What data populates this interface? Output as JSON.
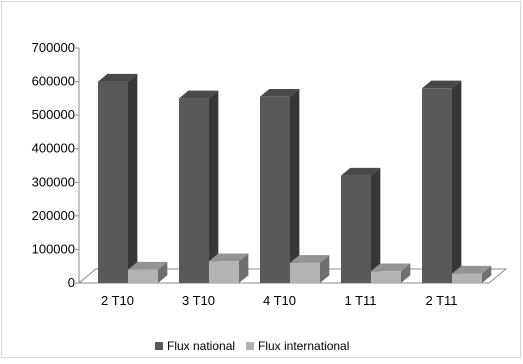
{
  "chart_data": {
    "type": "bar",
    "title": "",
    "xlabel": "",
    "ylabel": "",
    "categories": [
      "2 T10",
      "3 T10",
      "4 T10",
      "1 T11",
      "2 T11"
    ],
    "series": [
      {
        "name": "Flux national",
        "values": [
          600000,
          550000,
          555000,
          320000,
          580000
        ],
        "color": "#595959"
      },
      {
        "name": "Flux international",
        "values": [
          40000,
          65000,
          60000,
          35000,
          28000
        ],
        "color": "#b3b3b3"
      }
    ],
    "ylim": [
      0,
      700000
    ],
    "yticks": [
      "0",
      "100000",
      "200000",
      "300000",
      "400000",
      "500000",
      "600000",
      "700000"
    ],
    "grid": false,
    "legend_position": "bottom"
  }
}
